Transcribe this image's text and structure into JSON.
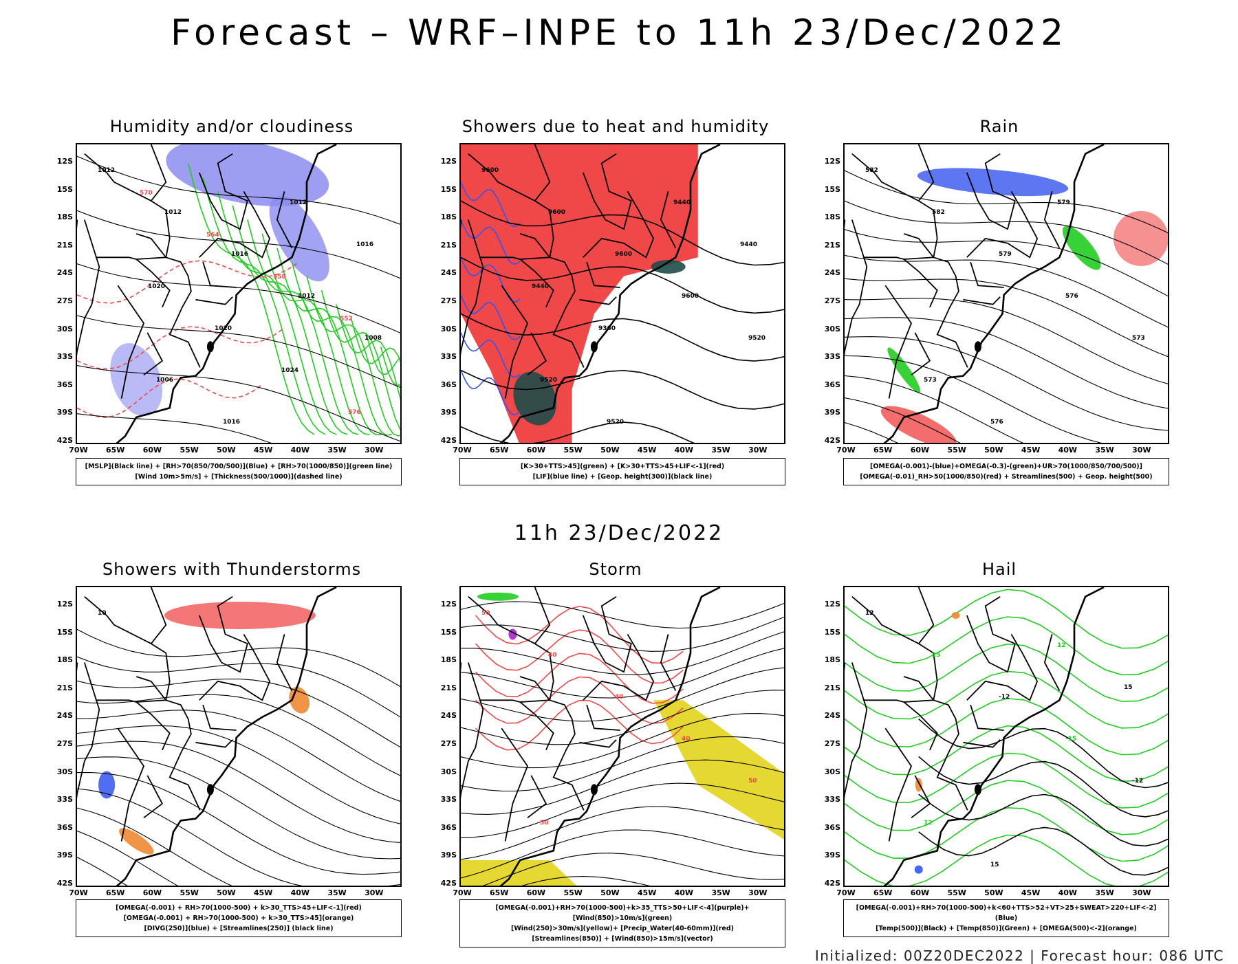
{
  "title": "Forecast – WRF–INPE to 11h 23/Dec/2022",
  "subtitle": "11h 23/Dec/2022",
  "footer": "Initialized: 00Z20DEC2022 | Forecast hour: 086 UTC",
  "lat_labels": [
    "12S",
    "15S",
    "18S",
    "21S",
    "24S",
    "27S",
    "30S",
    "33S",
    "36S",
    "39S",
    "42S"
  ],
  "lon_labels": [
    "70W",
    "65W",
    "60W",
    "55W",
    "50W",
    "45W",
    "40W",
    "35W",
    "30W"
  ],
  "colors": {
    "rh_blue": "#8c8cf0",
    "humidity_green": "#22cc22",
    "showers_red": "#f04848",
    "dark_teal": "#1e4d4a",
    "lif_blue": "#3355ee",
    "orange": "#ee8833",
    "yellow": "#e6d832",
    "purple": "#aa22cc"
  },
  "panels": [
    {
      "title": "Humidity and/or cloudiness",
      "legend": [
        "[MSLP](Black line) + [RH>70(850/700/500)](Blue) + [RH>70(1000/850)](green line)",
        "[Wind 10m>5m/s] + [Thickness(500/1000)](dashed line)"
      ],
      "contour_labels": [
        "1012",
        "1012",
        "1016",
        "1012",
        "1008",
        "1006",
        "1016",
        "1012",
        "1016",
        "1020",
        "1020",
        "1024",
        "576",
        "570",
        "564",
        "558",
        "552"
      ]
    },
    {
      "title": "Showers due to heat and humidity",
      "legend": [
        "[K>30+TTS>45](green) + [K>30+TTS>45+LIF<-1](red)",
        "[LIF](blue line) + [Geop. height(300)](black line)"
      ],
      "contour_labels": [
        "9600",
        "9600",
        "9600",
        "9600",
        "9520",
        "9520",
        "9520",
        "9440",
        "9440",
        "9440",
        "9360"
      ]
    },
    {
      "title": "Rain",
      "legend": [
        "[OMEGA(-0.001)-(blue)+OMEGA(-0.3)-(green)+UR>70(1000/850/700/500)]",
        "[OMEGA(-0.01)_RH>50(1000/850)(red) + Streamlines(500) + Geop. height(500)"
      ],
      "contour_labels": [
        "582",
        "582",
        "579",
        "576",
        "573",
        "573",
        "576",
        "579"
      ]
    },
    {
      "title": "Showers with Thunderstorms",
      "legend": [
        "[OMEGA(-0.001) + RH>70(1000-500) + k>30_TTS>45+LIF<-1](red)",
        "[OMEGA(-0.001) + RH>70(1000-500) + k>30_TTS>45](orange)",
        "[DIVG(250)](blue) + [Streamlines(250)] (black line)"
      ],
      "contour_labels": [
        "10"
      ]
    },
    {
      "title": "Storm",
      "legend": [
        "[OMEGA(-0.001)+RH>70(1000-500)+k>35_TTS>50+LIF<-4](purple)+[Wind(850)>10m/s](green)",
        "[Wind(250)>30m/s](yellow)+ [Precip_Water(40-60mm)](red)",
        "[Streamlines(850)] + [Wind(850)>15m/s](vector)"
      ],
      "contour_labels": [
        "50",
        "40",
        "40",
        "40",
        "50",
        "50"
      ]
    },
    {
      "title": "Hail",
      "legend": [
        "[OMEGA(-0.001)+RH>70(1000-500)+k<60+TTS>52+VT>25+SWEAT>220+LIF<-2](Blue)",
        "[Temp(500)](Black) + [Temp(850)](Green) + [OMEGA(500)<-2](orange)"
      ],
      "contour_labels": [
        "12",
        "15",
        "-12",
        "-15",
        "-12",
        "12",
        "15",
        "12",
        "15"
      ]
    }
  ]
}
